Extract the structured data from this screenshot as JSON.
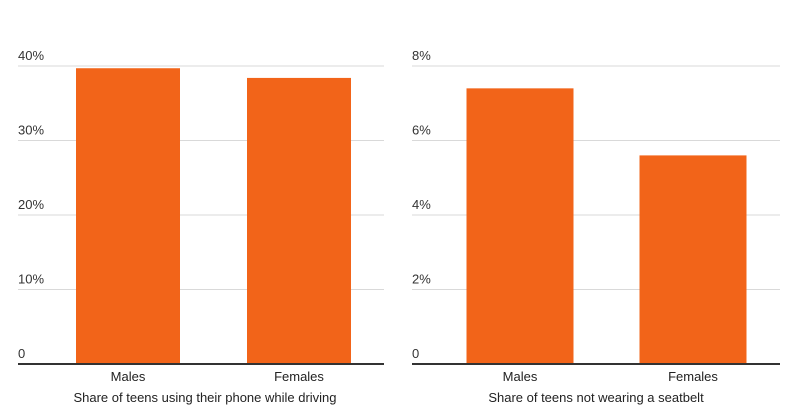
{
  "colors": {
    "bar": "#f26419",
    "grid": "#d9d9d9",
    "axis": "#333333",
    "text": "#222222"
  },
  "chart_data": [
    {
      "type": "bar",
      "categories": [
        "Males",
        "Females"
      ],
      "values": [
        39.7,
        38.4
      ],
      "unit": "%",
      "title": "",
      "xlabel": "Share of teens using their phone while driving",
      "ylabel": "",
      "ylim": [
        0,
        40
      ],
      "yticks": [
        0,
        10,
        20,
        30,
        40
      ],
      "ytick_labels": [
        "0",
        "10%",
        "20%",
        "30%",
        "40%"
      ],
      "grid": true,
      "legend": "none"
    },
    {
      "type": "bar",
      "categories": [
        "Males",
        "Females"
      ],
      "values": [
        7.4,
        5.6
      ],
      "unit": "%",
      "title": "",
      "xlabel": "Share of teens not wearing a seatbelt",
      "ylabel": "",
      "ylim": [
        0,
        8
      ],
      "yticks": [
        0,
        2,
        4,
        6,
        8
      ],
      "ytick_labels": [
        "0",
        "2%",
        "4%",
        "6%",
        "8%"
      ],
      "grid": true,
      "legend": "none"
    }
  ]
}
